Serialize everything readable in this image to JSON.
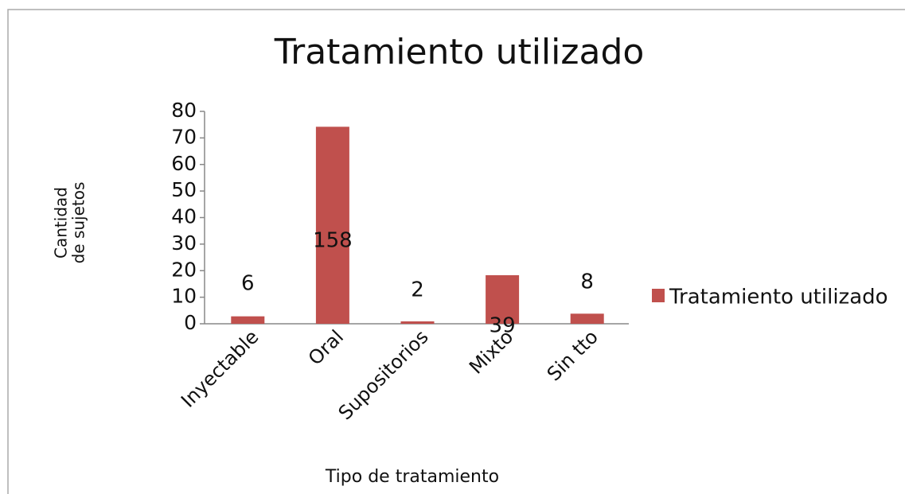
{
  "chart_data": {
    "type": "bar",
    "title": "Tratamiento utilizado",
    "x_label": "Tipo de tratamiento",
    "y_label": [
      "Cantidad",
      "de sujetos"
    ],
    "categories": [
      "Inyectable",
      "Oral",
      "Supositorios",
      "Mixto",
      "Sin tto"
    ],
    "series": [
      {
        "name": "Tratamiento utilizado",
        "color": "#c0504d",
        "values": [
          2.8,
          74.2,
          0.9,
          18.3,
          3.8
        ]
      }
    ],
    "annotations": [
      "6",
      "158",
      "2",
      "39",
      "8"
    ],
    "ylim": [
      0,
      80
    ],
    "yticks": [
      0,
      10,
      20,
      30,
      40,
      50,
      60,
      70,
      80
    ],
    "grid": false,
    "legend": "right"
  }
}
